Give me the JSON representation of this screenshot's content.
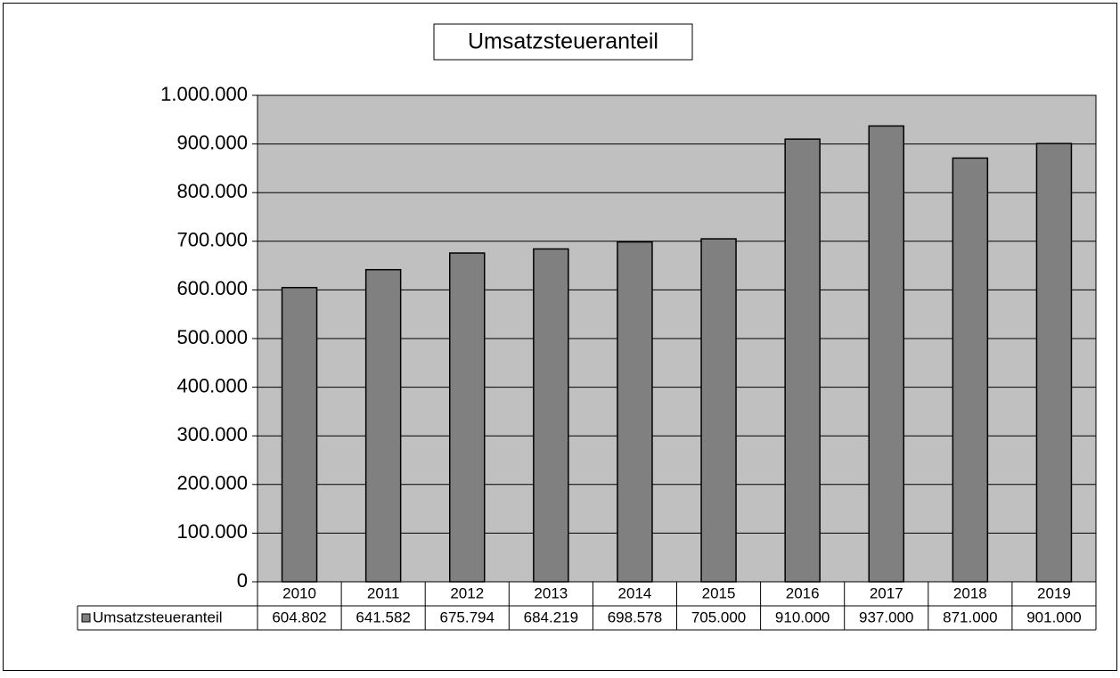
{
  "chart_data": {
    "type": "bar",
    "title": "Umsatzsteueranteil",
    "categories": [
      "2010",
      "2011",
      "2012",
      "2013",
      "2014",
      "2015",
      "2016",
      "2017",
      "2018",
      "2019"
    ],
    "series": [
      {
        "name": "Umsatzsteueranteil",
        "color": "#808080",
        "values": [
          604802,
          641582,
          675794,
          684219,
          698578,
          705000,
          910000,
          937000,
          871000,
          901000
        ],
        "value_labels": [
          "604.802",
          "641.582",
          "675.794",
          "684.219",
          "698.578",
          "705.000",
          "910.000",
          "937.000",
          "871.000",
          "901.000"
        ]
      }
    ],
    "ylim": [
      0,
      1000000
    ],
    "yticks": [
      0,
      {
        "value": 100000,
        "label": "100.000"
      },
      {
        "value": 200000,
        "label": "200.000"
      },
      {
        "value": 300000,
        "label": "300.000"
      },
      {
        "value": 400000,
        "label": "400.000"
      },
      {
        "value": 500000,
        "label": "500.000"
      },
      {
        "value": 600000,
        "label": "600.000"
      },
      {
        "value": 700000,
        "label": "700.000"
      },
      {
        "value": 800000,
        "label": "800.000"
      },
      {
        "value": 900000,
        "label": "900.000"
      },
      {
        "value": 1000000,
        "label": "1.000.000"
      }
    ],
    "grid": true,
    "plot_background": "#c0c0c0"
  }
}
